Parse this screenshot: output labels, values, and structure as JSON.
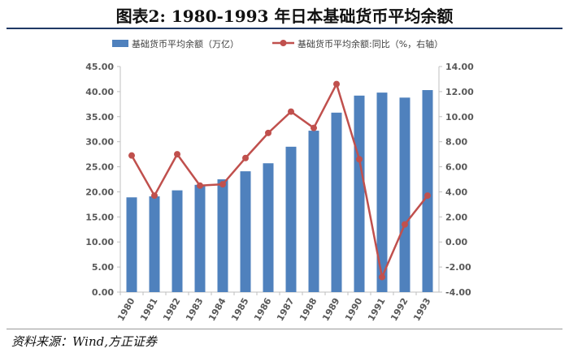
{
  "title": "图表2:   1980-1993 年日本基础货币平均余额",
  "source": "资料来源：Wind,方正证券",
  "chart_data": {
    "type": "bar+line",
    "categories": [
      "1980",
      "1981",
      "1982",
      "1983",
      "1984",
      "1985",
      "1986",
      "1987",
      "1988",
      "1989",
      "1990",
      "1991",
      "1992",
      "1993"
    ],
    "series": [
      {
        "name": "基础货币平均余额（万亿）",
        "type": "bar",
        "axis": "left",
        "color": "#4f81bd",
        "values": [
          18.9,
          19.1,
          20.3,
          21.4,
          22.5,
          24.1,
          25.7,
          29.0,
          32.2,
          35.8,
          39.2,
          39.8,
          38.8,
          40.3
        ]
      },
      {
        "name": "基础货币平均余额:同比（%，右轴）",
        "type": "line",
        "axis": "right",
        "color": "#c0504d",
        "values": [
          6.9,
          3.7,
          7.0,
          4.5,
          4.6,
          6.7,
          8.7,
          10.4,
          9.1,
          12.6,
          6.6,
          -2.8,
          1.4,
          3.7
        ]
      }
    ],
    "left_axis": {
      "range": [
        0,
        45
      ],
      "ticks": [
        "0.00",
        "5.00",
        "10.00",
        "15.00",
        "20.00",
        "25.00",
        "30.00",
        "35.00",
        "40.00",
        "45.00"
      ]
    },
    "right_axis": {
      "range": [
        -4,
        14
      ],
      "ticks": [
        "-4.00",
        "-2.00",
        "0.00",
        "2.00",
        "4.00",
        "6.00",
        "8.00",
        "10.00",
        "12.00",
        "14.00"
      ]
    },
    "legend": "top",
    "grid": false
  }
}
